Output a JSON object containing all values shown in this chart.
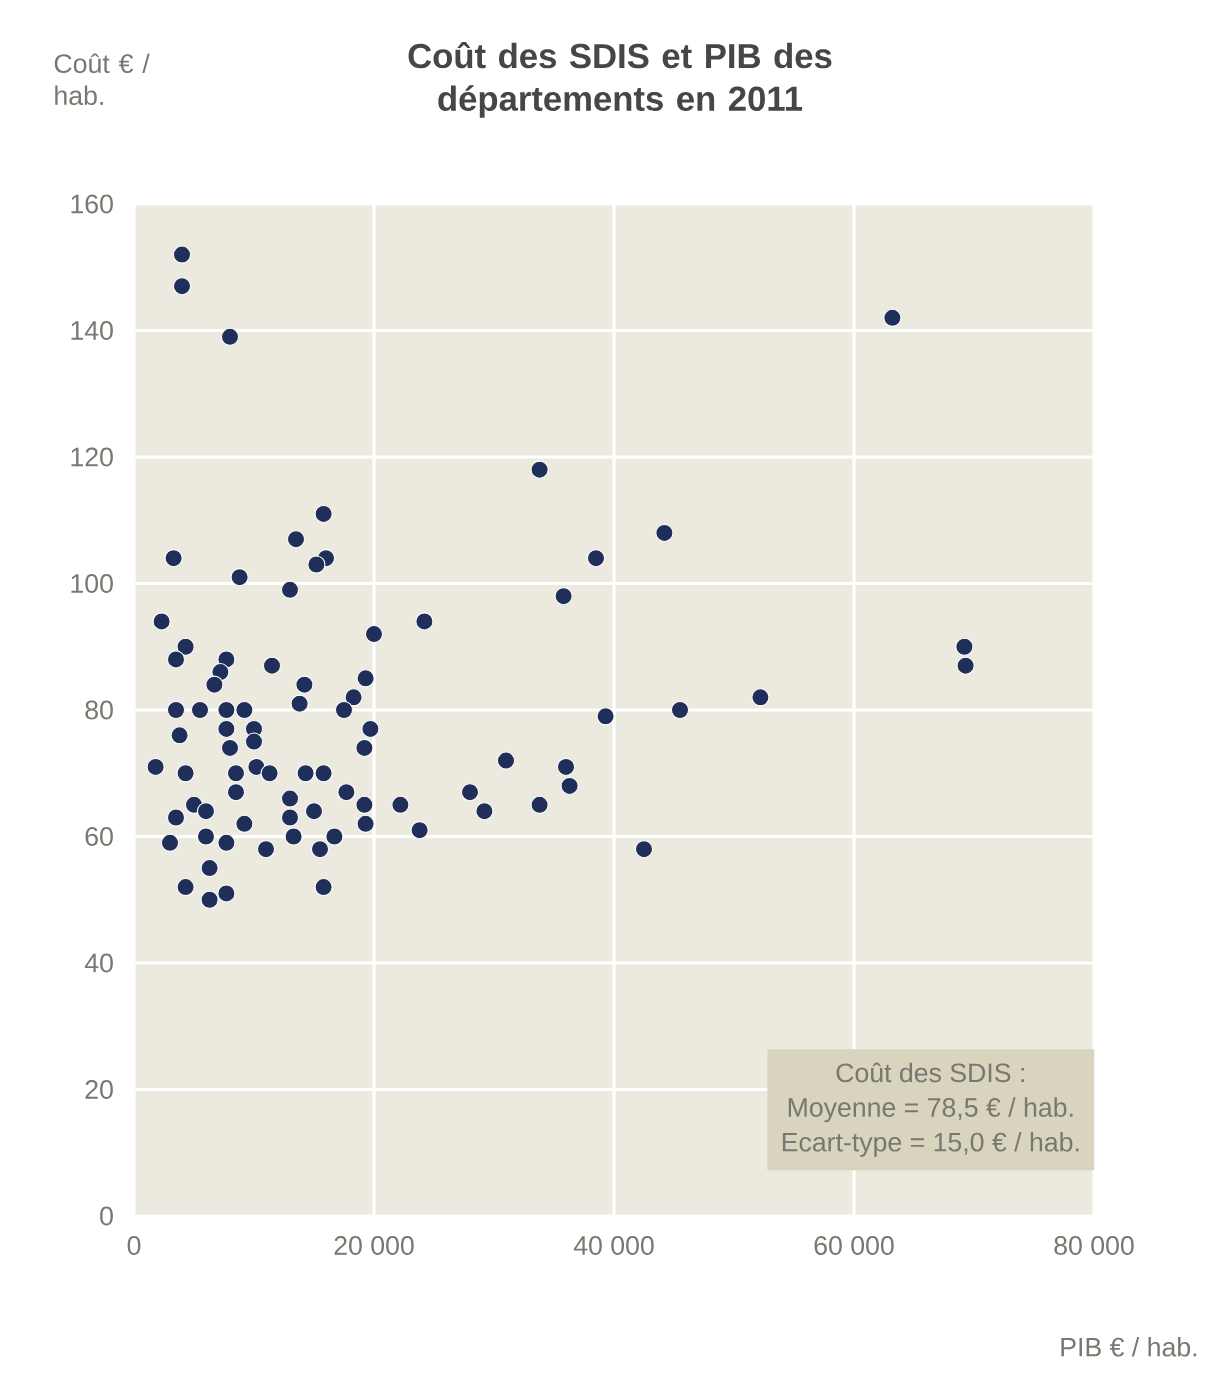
{
  "chart_data": {
    "type": "scatter",
    "title": "Coût des SDIS et PIB des départements en 2011",
    "xlabel": "PIB € / hab.",
    "ylabel": "Coût € / hab.",
    "annotations": [
      "Coût des SDIS :",
      "Moyenne = 78,5 € / hab.",
      "Ecart-type = 15,0 € / hab."
    ],
    "xlim": [
      0,
      80000
    ],
    "ylim": [
      0,
      160
    ],
    "xticks": [
      0,
      {
        "value": 20000,
        "label": "20 000"
      },
      {
        "value": 40000,
        "label": "40 000"
      },
      {
        "value": 60000,
        "label": "60 000"
      },
      {
        "value": 80000,
        "label": "80 000"
      }
    ],
    "yticks": [
      0,
      20,
      40,
      60,
      80,
      100,
      120,
      140,
      160
    ],
    "grid": true,
    "marker": "circle",
    "series": [
      {
        "color": "#1f2f5a",
        "x": [
          4000,
          4000,
          8000,
          15800,
          13500,
          16000,
          15200,
          8800,
          13000,
          3300,
          2300,
          24200,
          20000,
          4300,
          3500,
          7700,
          7200,
          11500,
          6700,
          14200,
          13800,
          19300,
          18300,
          17500,
          19700,
          19200,
          3500,
          5500,
          7700,
          9200,
          3800,
          7700,
          10000,
          8000,
          10000,
          1800,
          4300,
          8500,
          10200,
          11300,
          14300,
          15800,
          8500,
          13000,
          17700,
          5000,
          19200,
          22200,
          3500,
          6000,
          13000,
          15000,
          19300,
          23800,
          3000,
          6000,
          7700,
          9200,
          11000,
          13300,
          15500,
          16700,
          6300,
          4300,
          6300,
          7700,
          15800,
          28000,
          33800,
          44200,
          38500,
          35800,
          39300,
          45500,
          31000,
          36000,
          36300,
          29200,
          33800,
          42500,
          63200,
          69200,
          69300,
          52200
        ],
        "values": [
          152,
          147,
          139,
          111,
          107,
          104,
          103,
          101,
          99,
          104,
          94,
          94,
          92,
          90,
          88,
          88,
          86,
          87,
          84,
          84,
          81,
          85,
          82,
          80,
          77,
          74,
          80,
          80,
          80,
          80,
          76,
          77,
          77,
          74,
          75,
          71,
          70,
          70,
          71,
          70,
          70,
          70,
          67,
          66,
          67,
          65,
          65,
          65,
          63,
          64,
          63,
          64,
          62,
          61,
          59,
          60,
          59,
          62,
          58,
          60,
          58,
          60,
          55,
          52,
          50,
          51,
          52,
          67,
          118,
          108,
          104,
          98,
          79,
          80,
          72,
          71,
          68,
          64,
          65,
          58,
          142,
          90,
          87,
          82
        ]
      }
    ]
  }
}
